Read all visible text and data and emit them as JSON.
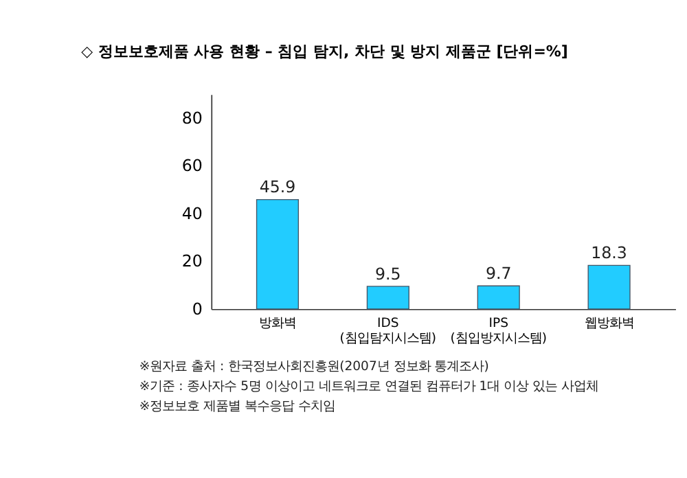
{
  "chart_data": {
    "type": "bar",
    "title": "◇ 정보보호제품 사용 현황 – 침입 탐지, 차단 및 방지 제품군  [단위=%]",
    "categories": [
      "방화벽",
      "IDS\n(침입탐지시스템)",
      "IPS\n(침입방지시스템)",
      "웹방화벽"
    ],
    "values": [
      45.9,
      9.5,
      9.7,
      18.3
    ],
    "color": "#22ccff",
    "ylim": [
      0,
      90
    ],
    "yticks": [
      0,
      20,
      40,
      60,
      80
    ],
    "grid": false,
    "data_labels": true,
    "annotations": [
      "※원자료 출처 : 한국정보사회진흥원(2007년 정보화 통계조사)",
      "※기준 : 종사자수 5명 이상이고 네트워크로 연결된 컴퓨터가 1대 이상 있는 사업체",
      "※정보보호 제품별 복수응답 수치임"
    ]
  }
}
